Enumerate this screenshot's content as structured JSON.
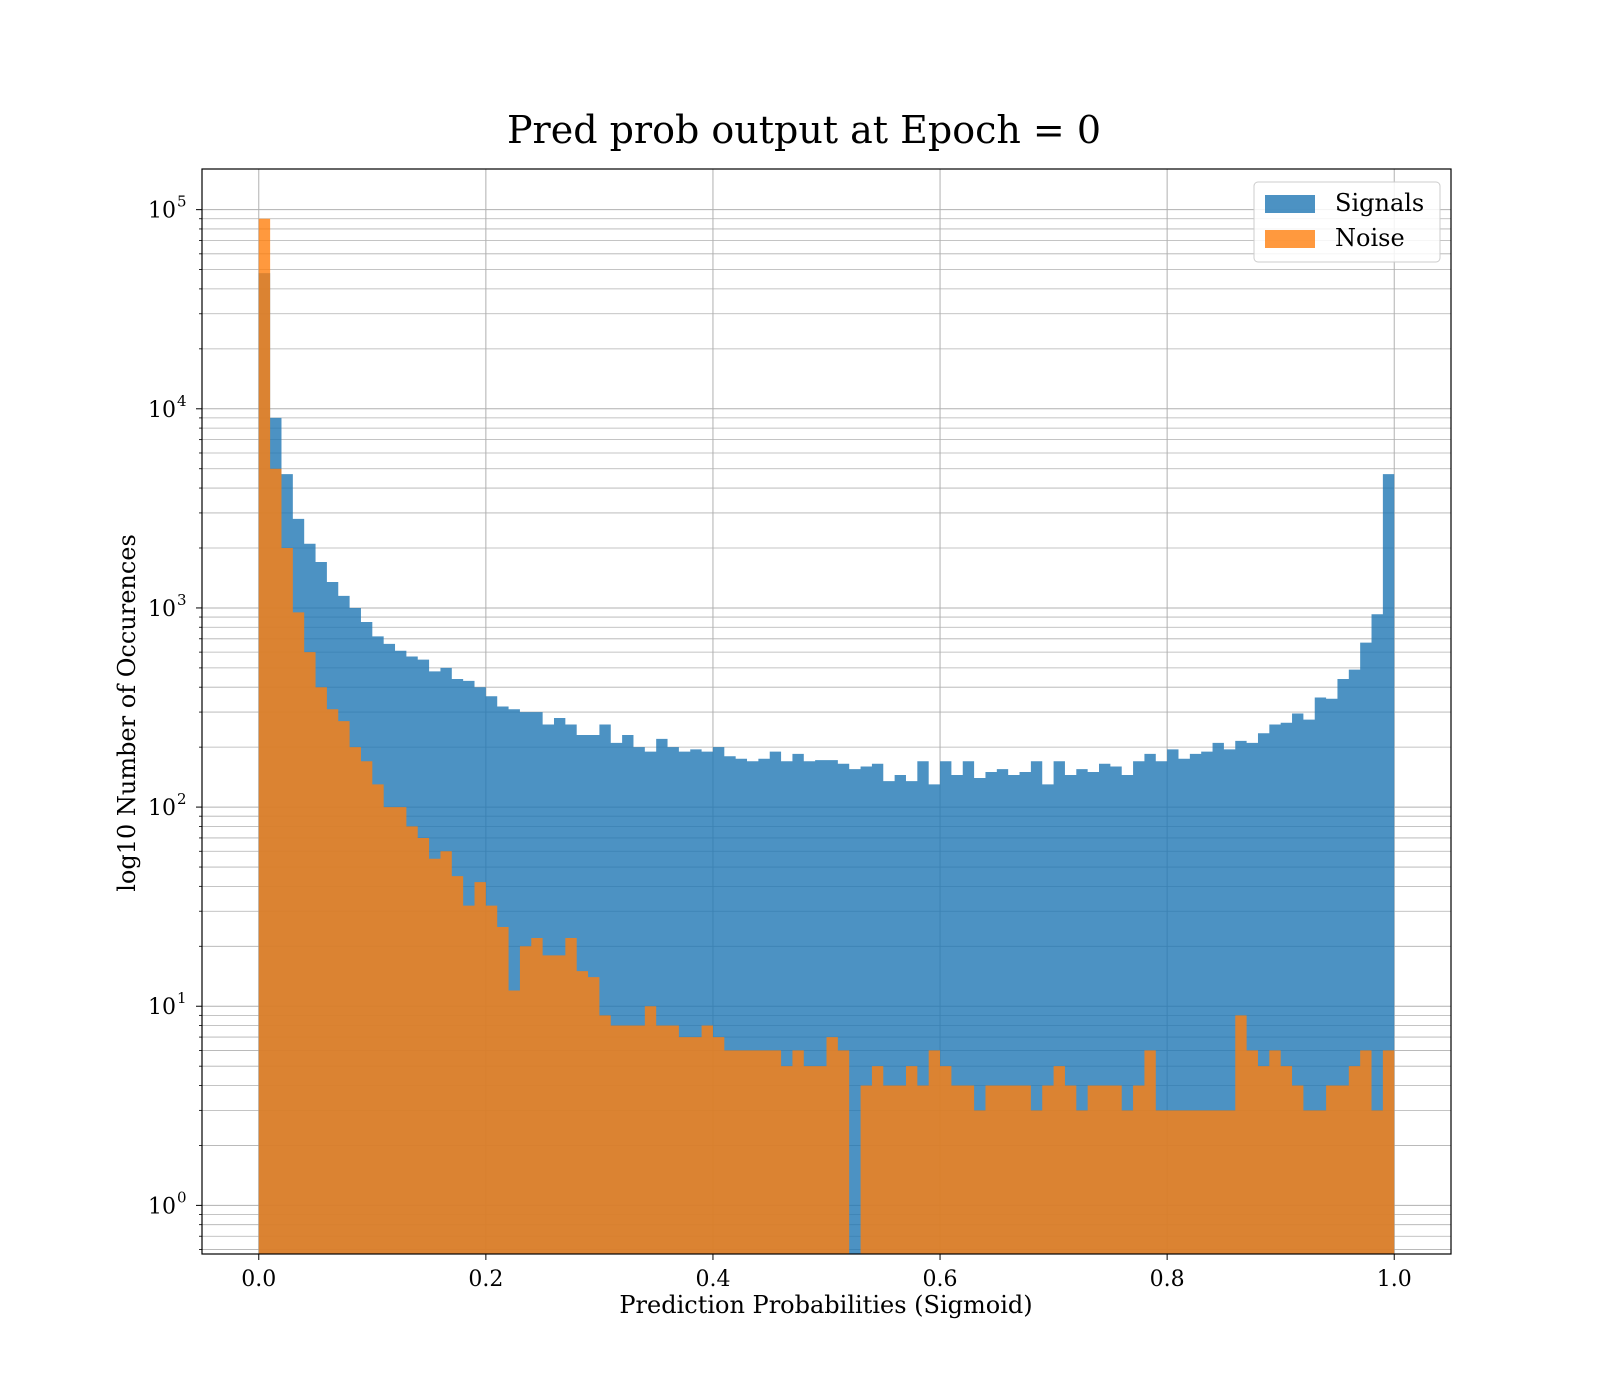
{
  "chart_data": {
    "type": "bar",
    "histogram": true,
    "title": "Pred prob output at Epoch = 0",
    "xlabel": "Prediction Probabilities (Sigmoid)",
    "ylabel": "log10 Number of Occurences",
    "yscale": "log",
    "xlim": [
      -0.05,
      1.05
    ],
    "ylim": [
      0.57,
      160000
    ],
    "grid": true,
    "legend_position": "top-right",
    "x_ticks": [
      "0.0",
      "0.2",
      "0.4",
      "0.6",
      "0.8",
      "1.0"
    ],
    "y_ticks": [
      {
        "base": "10",
        "exp": "0"
      },
      {
        "base": "10",
        "exp": "1"
      },
      {
        "base": "10",
        "exp": "2"
      },
      {
        "base": "10",
        "exp": "3"
      },
      {
        "base": "10",
        "exp": "4"
      },
      {
        "base": "10",
        "exp": "5"
      }
    ],
    "bins": {
      "start": 0.0,
      "end": 1.0,
      "count": 100
    },
    "series": [
      {
        "name": "Signals",
        "color": "#1f77b4",
        "opacity": 0.8,
        "values": [
          48000,
          9000,
          4700,
          2800,
          2100,
          1700,
          1350,
          1150,
          1000,
          850,
          720,
          660,
          610,
          570,
          550,
          480,
          500,
          440,
          430,
          400,
          360,
          320,
          310,
          300,
          300,
          260,
          280,
          260,
          230,
          230,
          260,
          210,
          230,
          200,
          190,
          220,
          200,
          190,
          195,
          190,
          200,
          180,
          175,
          170,
          175,
          190,
          170,
          185,
          170,
          172,
          172,
          165,
          155,
          160,
          165,
          135,
          145,
          135,
          170,
          130,
          170,
          145,
          170,
          140,
          150,
          155,
          145,
          150,
          170,
          130,
          170,
          145,
          155,
          150,
          165,
          160,
          145,
          170,
          185,
          170,
          195,
          175,
          185,
          190,
          210,
          195,
          215,
          210,
          235,
          260,
          265,
          295,
          275,
          355,
          350,
          440,
          490,
          670,
          930,
          4700
        ]
      },
      {
        "name": "Noise",
        "color": "#ff7f0e",
        "opacity": 0.8,
        "values": [
          90000,
          5000,
          2000,
          950,
          600,
          400,
          310,
          270,
          200,
          170,
          130,
          100,
          100,
          80,
          70,
          55,
          60,
          45,
          32,
          42,
          32,
          25,
          12,
          20,
          22,
          18,
          18,
          22,
          15,
          14,
          9,
          8,
          8,
          8,
          10,
          8,
          8,
          7,
          7,
          8,
          7,
          6,
          6,
          6,
          6,
          6,
          5,
          6,
          5,
          5,
          7,
          6,
          0,
          4,
          5,
          4,
          4,
          5,
          4,
          6,
          5,
          4,
          4,
          3,
          4,
          4,
          4,
          4,
          3,
          4,
          5,
          4,
          3,
          4,
          4,
          4,
          3,
          4,
          6,
          3,
          3,
          3,
          3,
          3,
          3,
          3,
          9,
          6,
          5,
          6,
          5,
          4,
          3,
          3,
          4,
          4,
          5,
          6,
          3,
          6
        ]
      }
    ]
  }
}
